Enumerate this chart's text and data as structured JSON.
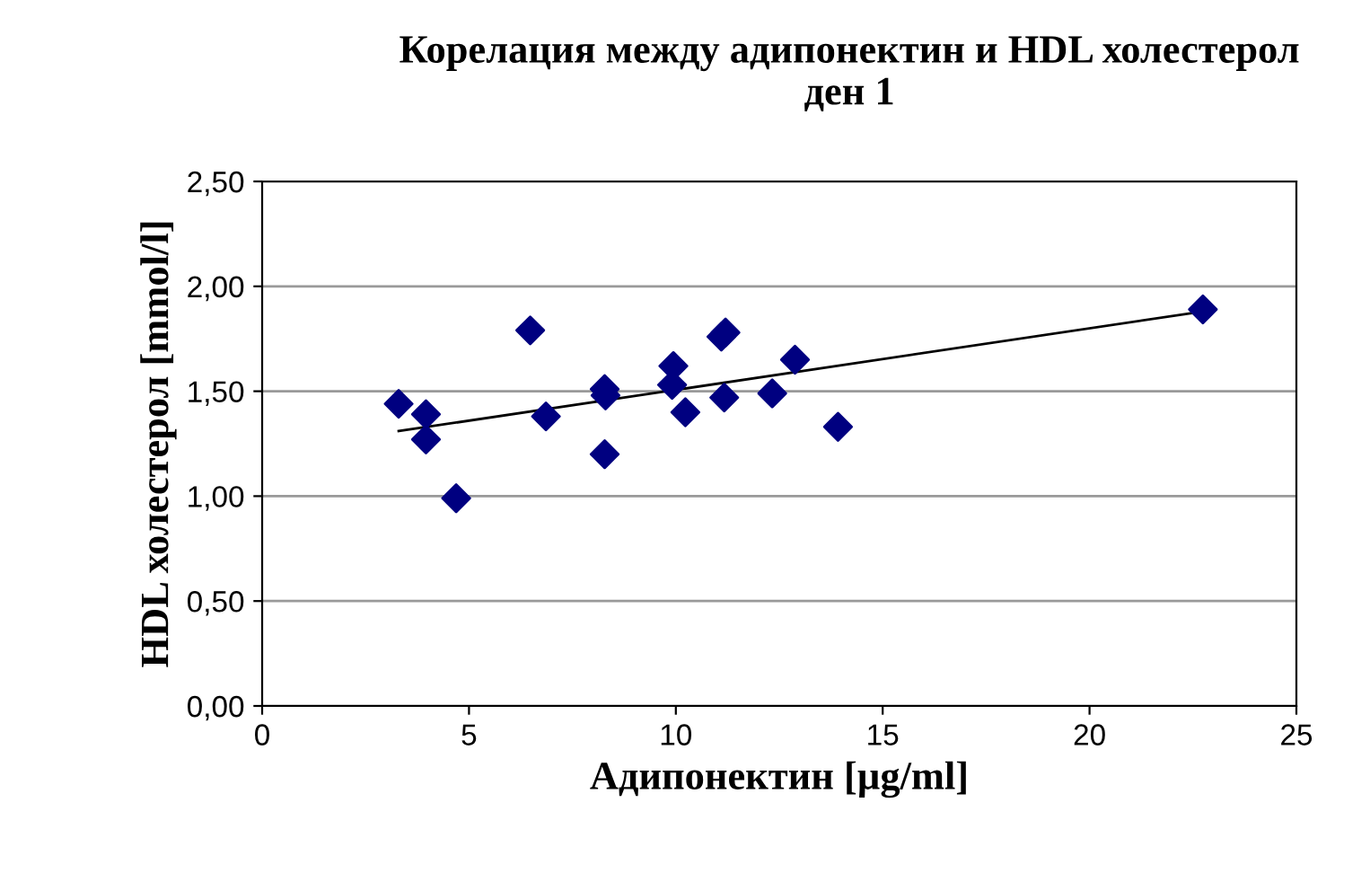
{
  "chart_data": {
    "type": "scatter",
    "title": "Корелация между адипонектин и HDL холестерол\nден 1",
    "xlabel": "Адипонектин [µg/ml]",
    "ylabel": "HDL холестерол [mmol/l]",
    "marker": "diamond",
    "grid": "y",
    "legend": false,
    "xlim": [
      0,
      25
    ],
    "xticks": [
      0,
      5,
      10,
      15,
      20,
      25
    ],
    "ylim": [
      0,
      2.5
    ],
    "yticks": [
      {
        "value": 0,
        "label": "0,00"
      },
      {
        "value": 0.5,
        "label": "0,50"
      },
      {
        "value": 1,
        "label": "1,00"
      },
      {
        "value": 1.5,
        "label": "1,50"
      },
      {
        "value": 2,
        "label": "2,00"
      },
      {
        "value": 2.5,
        "label": "2,50"
      }
    ],
    "series": [
      {
        "color": "#000080",
        "x": [
          3.3,
          3.96,
          3.96,
          4.69,
          6.48,
          6.86,
          8.28,
          8.3,
          8.28,
          9.94,
          9.91,
          10.23,
          11.1,
          11.2,
          11.17,
          12.33,
          12.88,
          13.92,
          22.74
        ],
        "values": [
          1.44,
          1.39,
          1.27,
          0.99,
          1.79,
          1.38,
          1.51,
          1.48,
          1.2,
          1.62,
          1.53,
          1.4,
          1.76,
          1.78,
          1.47,
          1.49,
          1.65,
          1.33,
          1.89
        ]
      },
      {
        "type": "line",
        "color": "#000000",
        "marker": "none",
        "x": [
          3.3,
          22.74
        ],
        "values": [
          1.31,
          1.88
        ]
      }
    ]
  }
}
